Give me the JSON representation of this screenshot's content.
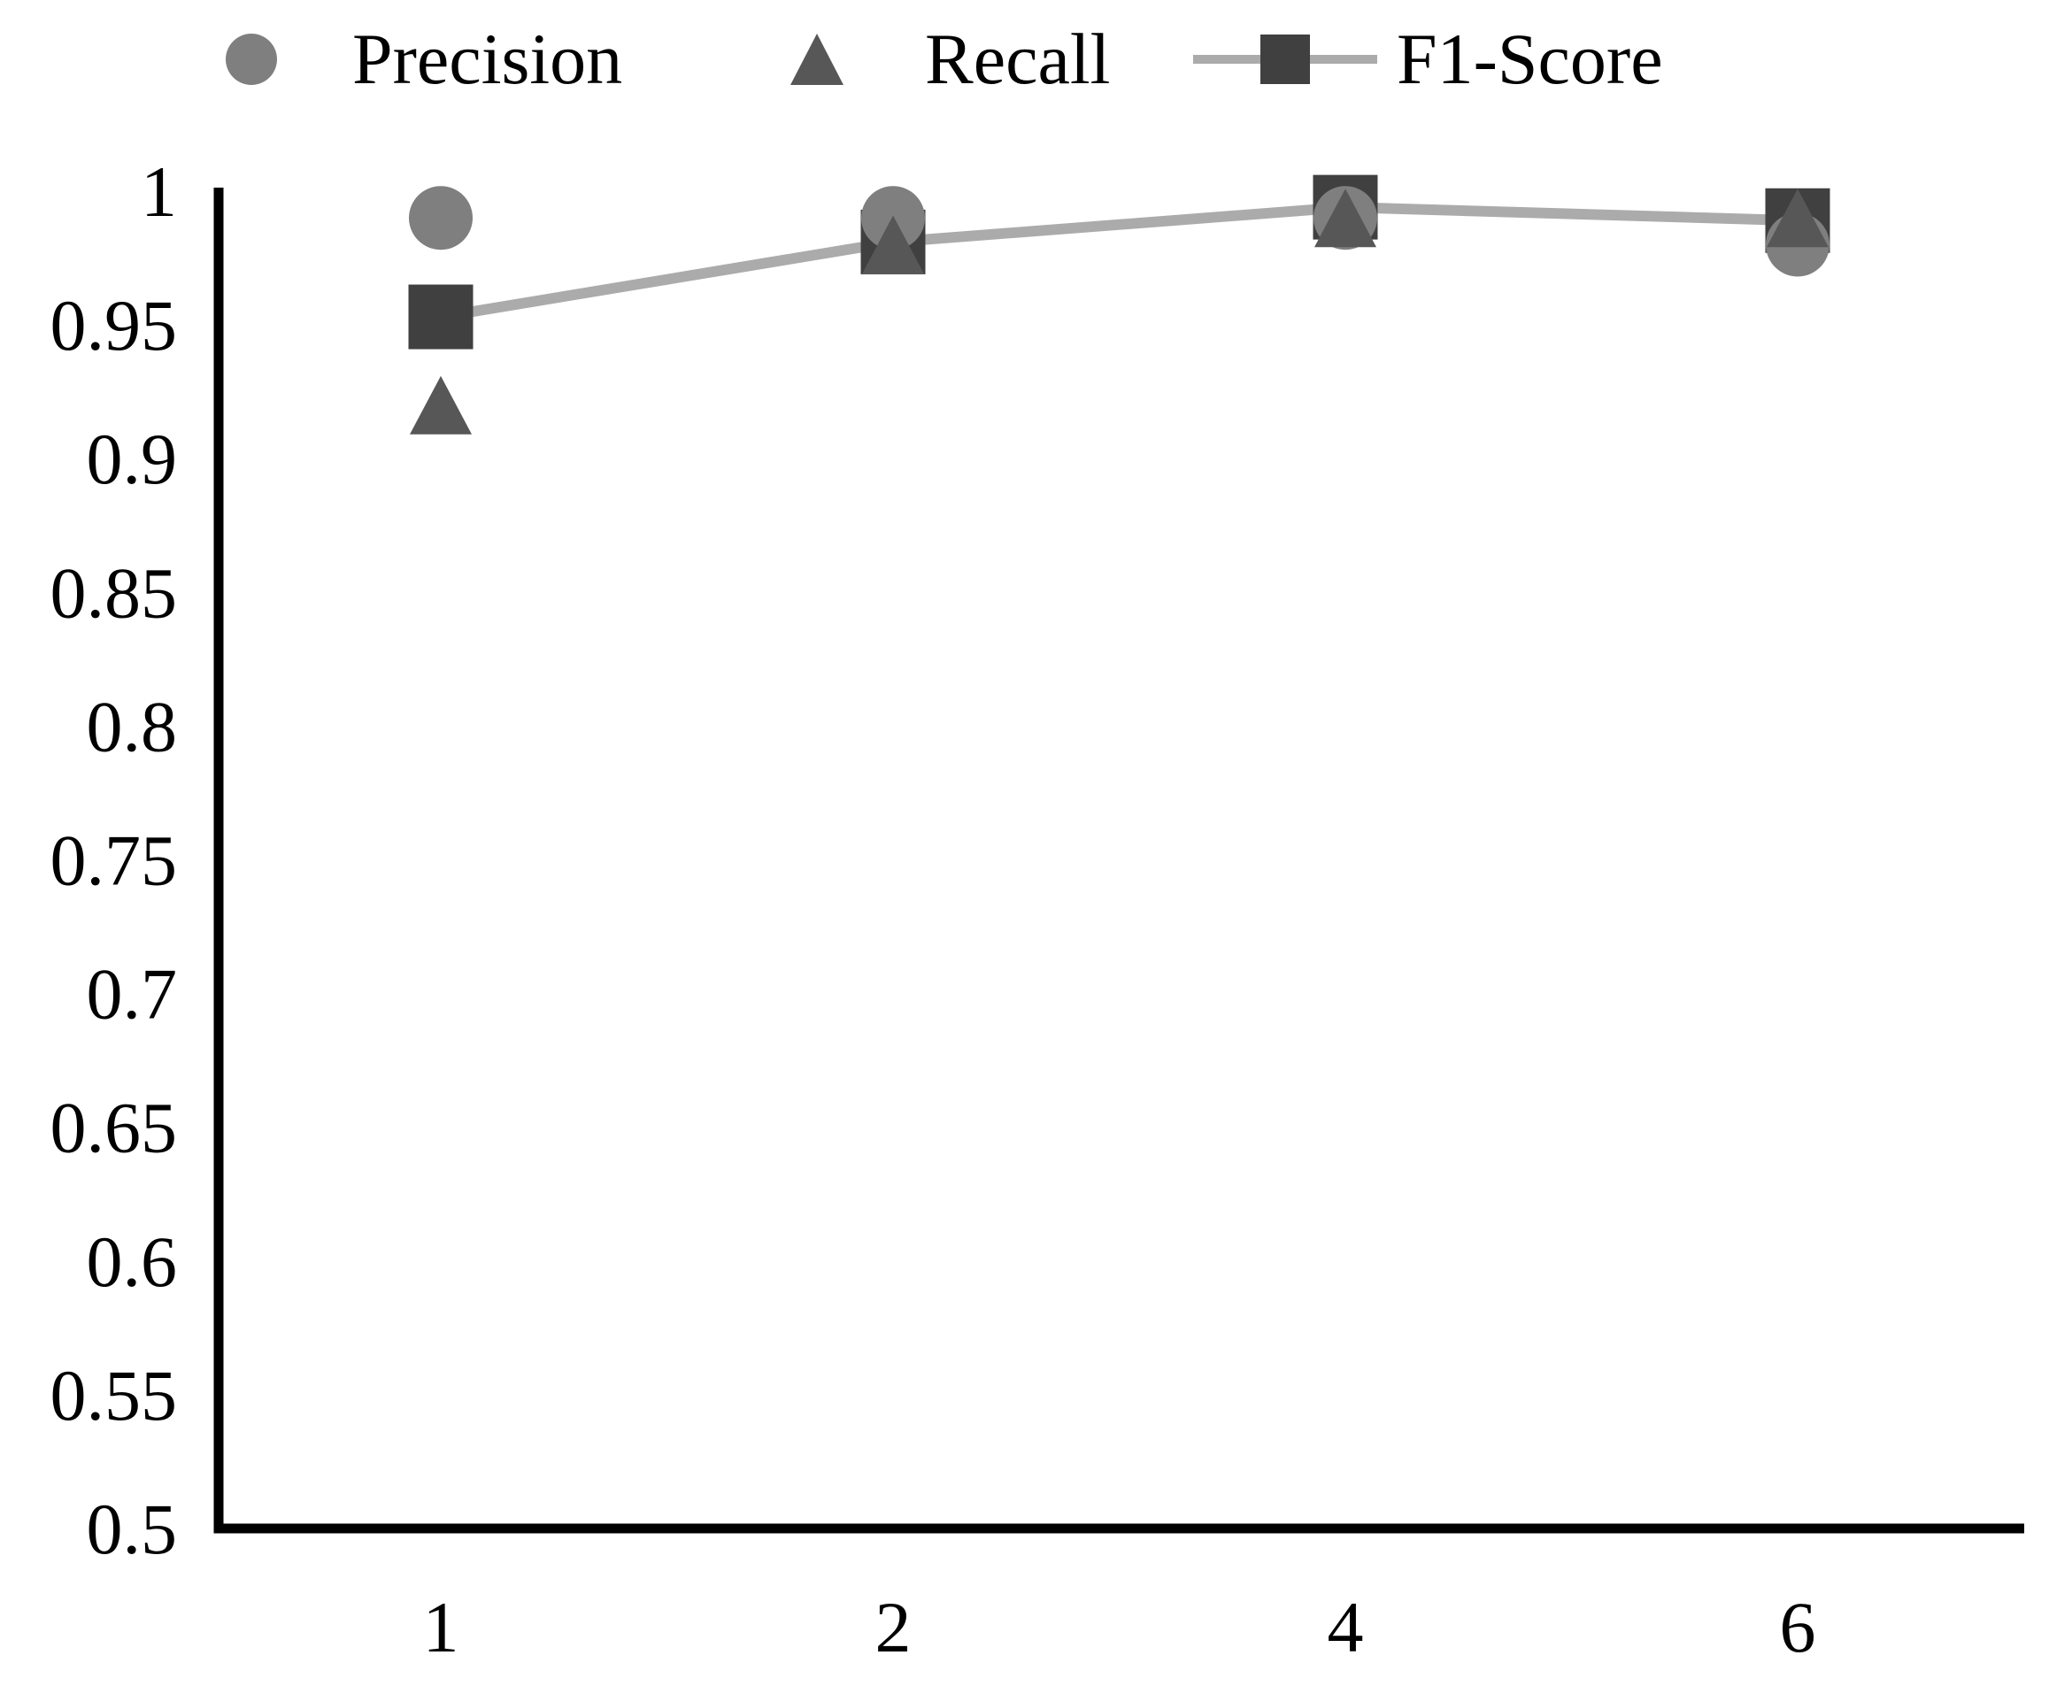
{
  "page": {
    "background": "#ffffff",
    "text_color": "#000000"
  },
  "legend": {
    "items": [
      {
        "label": "Precision",
        "marker": "circle-icon"
      },
      {
        "label": "Recall",
        "marker": "triangle-icon"
      },
      {
        "label": "F1-Score",
        "marker": "square-on-line-icon"
      }
    ]
  },
  "chart_data": {
    "type": "line",
    "title": "",
    "xlabel": "",
    "ylabel": "",
    "categories": [
      "1",
      "2",
      "4",
      "6"
    ],
    "series": [
      {
        "name": "Precision",
        "marker": "circle",
        "color": "#7f7f7f",
        "line": false,
        "values": [
          0.99,
          0.99,
          0.99,
          0.98
        ]
      },
      {
        "name": "Recall",
        "marker": "triangle",
        "color": "#575757",
        "line": false,
        "values": [
          0.92,
          0.98,
          0.99,
          0.99
        ]
      },
      {
        "name": "F1-Score",
        "marker": "square",
        "color": "#404040",
        "line": true,
        "line_color": "#ababab",
        "values": [
          0.953,
          0.981,
          0.994,
          0.989
        ]
      }
    ],
    "yticks": [
      "1",
      "0.95",
      "0.9",
      "0.85",
      "0.8",
      "0.75",
      "0.7",
      "0.65",
      "0.6",
      "0.55",
      "0.5"
    ],
    "ytick_values": [
      1.0,
      0.95,
      0.9,
      0.85,
      0.8,
      0.75,
      0.7,
      0.65,
      0.6,
      0.55,
      0.5
    ],
    "ylim": [
      0.5,
      1.0
    ],
    "grid": false,
    "legend_position": "top",
    "axis_color": "#000000",
    "tick_color": "#000000"
  }
}
